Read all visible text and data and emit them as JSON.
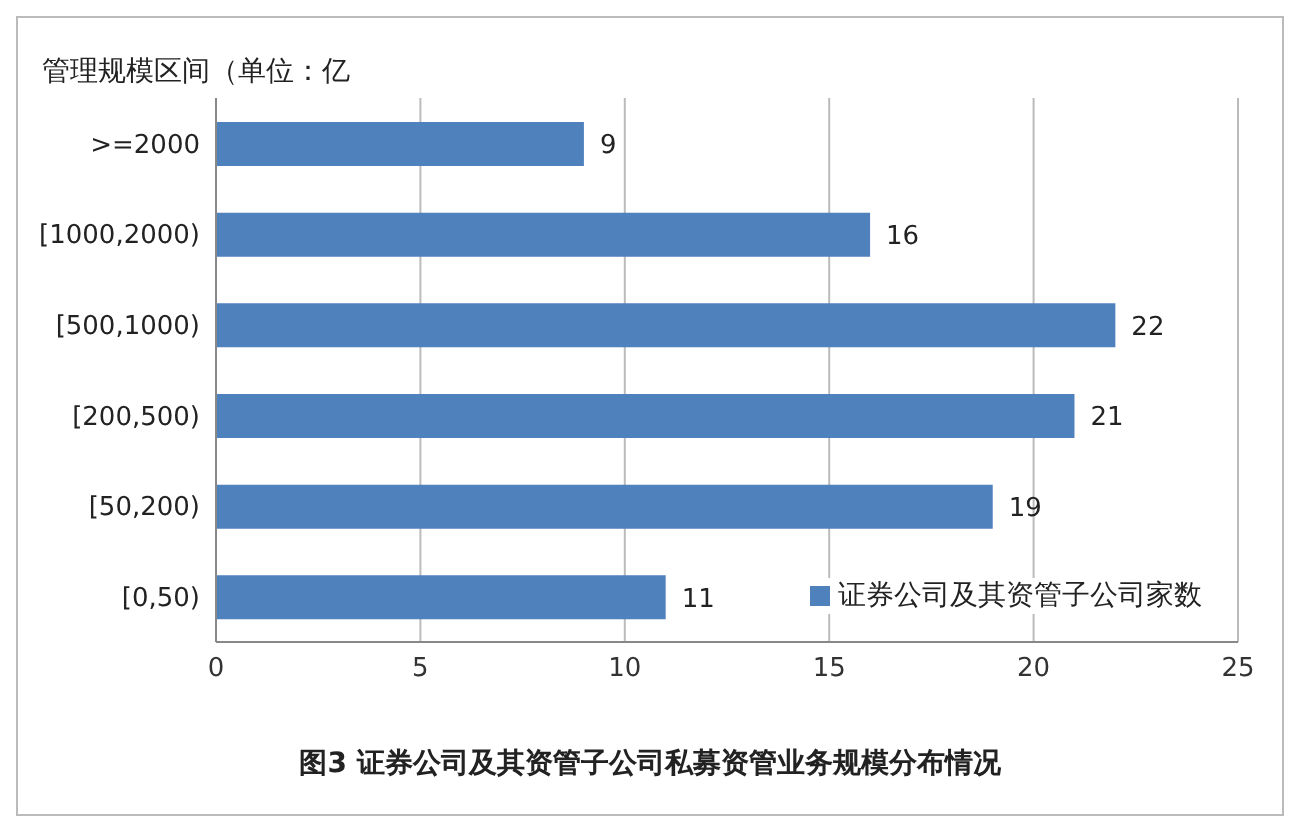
{
  "chart_data": {
    "type": "bar",
    "orientation": "horizontal",
    "title": "图3 证券公司及其资管子公司私募资管业务规模分布情况",
    "ylabel": "管理规模区间（单位：亿",
    "categories": [
      ">=2000",
      "[1000,2000)",
      "[500,1000)",
      "[200,500)",
      "[50,200)",
      "[0,50)"
    ],
    "series": [
      {
        "name": "证券公司及其资管子公司家数",
        "color": "#4f81bd",
        "values": [
          9,
          16,
          22,
          21,
          19,
          11
        ]
      }
    ],
    "xlim": [
      0,
      25
    ],
    "xticks": [
      0,
      5,
      10,
      15,
      20,
      25
    ],
    "grid": "x",
    "legend": "bottom right",
    "data_labels": true
  }
}
